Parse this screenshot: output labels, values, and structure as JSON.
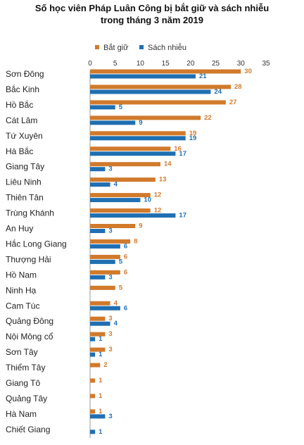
{
  "chart_data": {
    "type": "bar",
    "orientation": "horizontal",
    "title_line1": "Số học viên Pháp Luân Công bị bắt giữ và sách nhiễu",
    "title_line2": "trong tháng 3 năm 2019",
    "xlim": [
      0,
      35
    ],
    "xticks": [
      0,
      5,
      10,
      15,
      20,
      25,
      30,
      35
    ],
    "grid": false,
    "legend_position": "top",
    "categories": [
      "Sơn Đông",
      "Bắc Kinh",
      "Hồ Bắc",
      "Cát Lâm",
      "Tứ Xuyên",
      "Hà Bắc",
      "Giang Tây",
      "Liêu Ninh",
      "Thiên Tân",
      "Trùng Khánh",
      "An Huy",
      "Hắc Long Giang",
      "Thượng Hải",
      "Hồ Nam",
      "Ninh Hạ",
      "Cam Túc",
      "Quảng Đông",
      "Nội Mông cổ",
      "Sơn Tây",
      "Thiểm Tây",
      "Giang Tô",
      "Quảng Tây",
      "Hà Nam",
      "Chiết Giang"
    ],
    "series": [
      {
        "name": "Bắt giữ",
        "color": "#d17a2c",
        "values": [
          30,
          28,
          27,
          22,
          19,
          16,
          14,
          13,
          12,
          12,
          9,
          8,
          6,
          6,
          5,
          4,
          3,
          3,
          3,
          2,
          1,
          1,
          1,
          null
        ]
      },
      {
        "name": "Sách nhiễu",
        "color": "#1f6fb2",
        "values": [
          21,
          24,
          5,
          9,
          19,
          17,
          3,
          4,
          10,
          17,
          3,
          6,
          5,
          3,
          null,
          6,
          4,
          1,
          1,
          null,
          null,
          null,
          3,
          1
        ]
      }
    ]
  }
}
